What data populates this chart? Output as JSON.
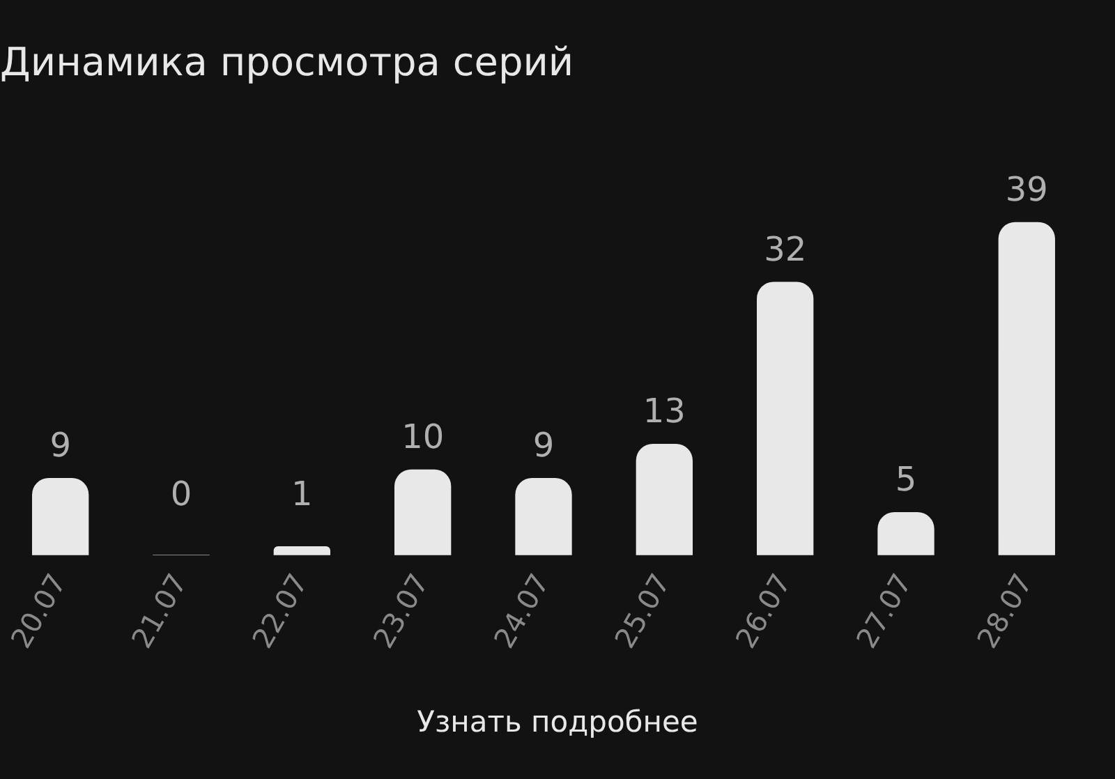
{
  "chart_data": {
    "type": "bar",
    "title": "Динамика просмотра серий",
    "categories": [
      "20.07",
      "21.07",
      "22.07",
      "23.07",
      "24.07",
      "25.07",
      "26.07",
      "27.07",
      "28.07"
    ],
    "values": [
      9,
      0,
      1,
      10,
      9,
      13,
      32,
      5,
      39
    ],
    "color": "#e8e8e8",
    "data_labels": true,
    "tick_labels": "x",
    "annotations": [
      "Узнать подробнее"
    ]
  }
}
